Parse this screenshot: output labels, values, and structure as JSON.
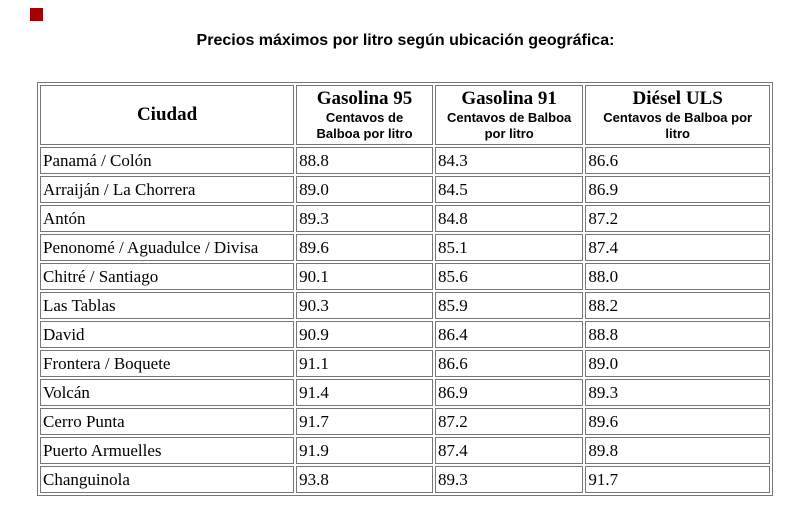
{
  "page": {
    "title": "Precios máximos por litro según ubicación geográfica:"
  },
  "icons": {
    "red_marker": "missing-image-red-square"
  },
  "colors": {
    "background": "#ffffff",
    "text": "#000000",
    "table_border": "#777777",
    "marker_red": "#a40000"
  },
  "table": {
    "columns": [
      {
        "label": "Ciudad",
        "subtitle": ""
      },
      {
        "label": "Gasolina 95",
        "subtitle": "Centavos de\nBalboa por litro"
      },
      {
        "label": "Gasolina 91",
        "subtitle": "Centavos de Balboa\npor litro"
      },
      {
        "label": "Diésel ULS",
        "subtitle": "Centavos de Balboa por\nlitro"
      }
    ],
    "rows": [
      {
        "ciudad": "Panamá / Colón",
        "g95": "88.8",
        "g91": "84.3",
        "diesel": "86.6"
      },
      {
        "ciudad": "Arraiján / La Chorrera",
        "g95": "89.0",
        "g91": "84.5",
        "diesel": "86.9"
      },
      {
        "ciudad": "Antón",
        "g95": "89.3",
        "g91": "84.8",
        "diesel": "87.2"
      },
      {
        "ciudad": "Penonomé / Aguadulce / Divisa",
        "g95": "89.6",
        "g91": "85.1",
        "diesel": "87.4"
      },
      {
        "ciudad": "Chitré / Santiago",
        "g95": "90.1",
        "g91": "85.6",
        "diesel": "88.0"
      },
      {
        "ciudad": "Las Tablas",
        "g95": "90.3",
        "g91": "85.9",
        "diesel": "88.2"
      },
      {
        "ciudad": "David",
        "g95": "90.9",
        "g91": "86.4",
        "diesel": "88.8"
      },
      {
        "ciudad": "Frontera / Boquete",
        "g95": "91.1",
        "g91": "86.6",
        "diesel": "89.0"
      },
      {
        "ciudad": "Volcán",
        "g95": "91.4",
        "g91": "86.9",
        "diesel": "89.3"
      },
      {
        "ciudad": "Cerro Punta",
        "g95": "91.7",
        "g91": "87.2",
        "diesel": "89.6"
      },
      {
        "ciudad": "Puerto Armuelles",
        "g95": "91.9",
        "g91": "87.4",
        "diesel": "89.8"
      },
      {
        "ciudad": "Changuinola",
        "g95": "93.8",
        "g91": "89.3",
        "diesel": "91.7"
      }
    ]
  }
}
